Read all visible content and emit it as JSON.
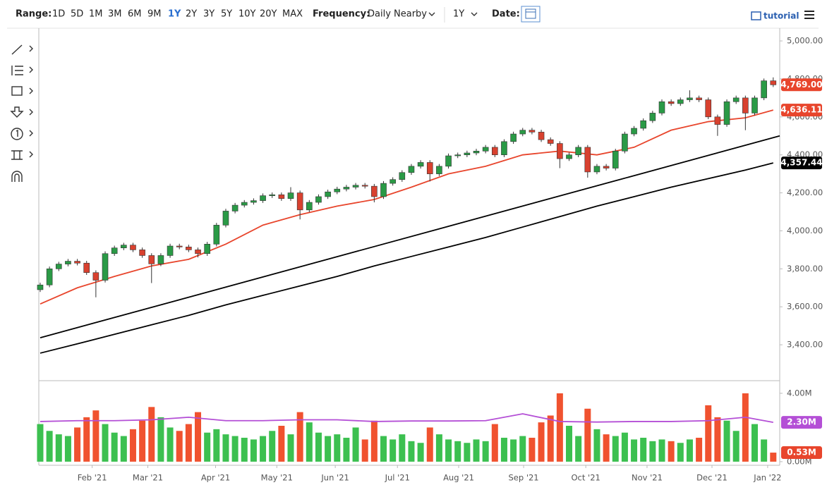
{
  "toolbar": {
    "range_label": "Range:",
    "ranges": [
      "1D",
      "5D",
      "1M",
      "3M",
      "6M",
      "9M",
      "1Y",
      "2Y",
      "3Y",
      "5Y",
      "10Y",
      "20Y",
      "MAX"
    ],
    "active_range": 6,
    "frequency_label": "Frequency:",
    "frequency": "Daily Nearby",
    "period": "1Y",
    "date_label": "Date:",
    "tutorial": "tutorial"
  },
  "chart_data": [
    {
      "type": "candlestick",
      "open": [
        3690,
        3715,
        3800,
        3825,
        3840,
        3830,
        3780,
        3740,
        3880,
        3910,
        3925,
        3900,
        3870,
        3826,
        3870,
        3920,
        3915,
        3900,
        3880,
        3930,
        4030,
        4104,
        4135,
        4150,
        4159,
        4185,
        4190,
        4170,
        4200,
        4110,
        4150,
        4180,
        4205,
        4220,
        4230,
        4240,
        4235,
        4180,
        4250,
        4270,
        4307,
        4340,
        4360,
        4300,
        4340,
        4395,
        4400,
        4410,
        4420,
        4440,
        4400,
        4470,
        4510,
        4530,
        4520,
        4480,
        4460,
        4380,
        4400,
        4440,
        4310,
        4340,
        4330,
        4420,
        4510,
        4540,
        4580,
        4620,
        4680,
        4670,
        4690,
        4700,
        4690,
        4600,
        4560,
        4680,
        4700,
        4620,
        4700,
        4790
      ],
      "high": [
        3727,
        3812,
        3837,
        3852,
        3852,
        3842,
        3792,
        3892,
        3922,
        3937,
        3937,
        3912,
        3882,
        3882,
        3932,
        3932,
        3927,
        3912,
        3942,
        4042,
        4116,
        4147,
        4162,
        4171,
        4197,
        4202,
        4202,
        4230,
        4212,
        4162,
        4192,
        4217,
        4232,
        4242,
        4252,
        4252,
        4247,
        4262,
        4282,
        4319,
        4352,
        4372,
        4372,
        4352,
        4407,
        4412,
        4422,
        4432,
        4452,
        4452,
        4482,
        4522,
        4542,
        4542,
        4532,
        4492,
        4472,
        4412,
        4452,
        4452,
        4352,
        4352,
        4432,
        4522,
        4552,
        4592,
        4632,
        4692,
        4692,
        4702,
        4740,
        4712,
        4702,
        4612,
        4692,
        4712,
        4712,
        4712,
        4802,
        4808
      ],
      "low": [
        3678,
        3703,
        3788,
        3813,
        3818,
        3768,
        3650,
        3728,
        3868,
        3898,
        3888,
        3858,
        3725,
        3814,
        3858,
        3903,
        3888,
        3860,
        3868,
        3918,
        4018,
        4092,
        4123,
        4138,
        4147,
        4173,
        4158,
        4158,
        4060,
        4098,
        4138,
        4168,
        4193,
        4208,
        4218,
        4223,
        4150,
        4168,
        4238,
        4258,
        4295,
        4328,
        4260,
        4288,
        4328,
        4383,
        4388,
        4398,
        4408,
        4388,
        4388,
        4458,
        4498,
        4508,
        4468,
        4448,
        4330,
        4368,
        4388,
        4280,
        4298,
        4318,
        4318,
        4408,
        4498,
        4528,
        4568,
        4608,
        4658,
        4658,
        4678,
        4678,
        4588,
        4500,
        4548,
        4668,
        4530,
        4608,
        4688,
        4757
      ],
      "close": [
        3715,
        3800,
        3825,
        3840,
        3830,
        3780,
        3740,
        3880,
        3910,
        3925,
        3900,
        3870,
        3826,
        3870,
        3920,
        3915,
        3900,
        3880,
        3930,
        4030,
        4104,
        4135,
        4150,
        4159,
        4185,
        4190,
        4170,
        4200,
        4110,
        4150,
        4180,
        4205,
        4220,
        4230,
        4240,
        4235,
        4180,
        4250,
        4270,
        4307,
        4340,
        4360,
        4300,
        4340,
        4395,
        4400,
        4410,
        4420,
        4440,
        4400,
        4470,
        4510,
        4530,
        4520,
        4480,
        4460,
        4380,
        4400,
        4440,
        4310,
        4340,
        4330,
        4420,
        4510,
        4540,
        4580,
        4620,
        4680,
        4670,
        4690,
        4700,
        4690,
        4600,
        4560,
        4680,
        4700,
        4620,
        4700,
        4790,
        4769
      ],
      "close_label": "4,769.00",
      "close_label_color": "#e8452c",
      "up_color": "#2a9a46",
      "down_color": "#d8412f",
      "series": [
        {
          "color": "#e8452c",
          "x": [
            0,
            4,
            8,
            12,
            16,
            20,
            24,
            28,
            32,
            36,
            40,
            44,
            48,
            52,
            56,
            60,
            64,
            68,
            72,
            76,
            79
          ],
          "values": [
            3615,
            3700,
            3760,
            3815,
            3850,
            3930,
            4030,
            4085,
            4130,
            4165,
            4230,
            4300,
            4340,
            4400,
            4420,
            4400,
            4440,
            4530,
            4575,
            4595,
            4636.11
          ],
          "label": "4,636.11"
        },
        {
          "color": "#000000",
          "x": [
            0,
            79.7
          ],
          "values": [
            3437,
            4500
          ]
        },
        {
          "color": "#000000",
          "x": [
            0,
            4,
            8,
            12,
            16,
            20,
            24,
            28,
            32,
            36,
            40,
            44,
            48,
            52,
            56,
            60,
            64,
            68,
            72,
            76,
            79
          ],
          "values": [
            3356,
            3405,
            3455,
            3505,
            3555,
            3610,
            3660,
            3710,
            3760,
            3815,
            3865,
            3915,
            3965,
            4020,
            4075,
            4130,
            4180,
            4230,
            4275,
            4320,
            4357.44
          ],
          "label": "4,357.44"
        }
      ],
      "xlim": [
        -0.15,
        79.7
      ],
      "xticks": [
        {
          "value": 5.6,
          "label": "Feb '21"
        },
        {
          "value": 11.6,
          "label": "Mar '21"
        },
        {
          "value": 18.9,
          "label": "Apr '21"
        },
        {
          "value": 25.5,
          "label": "May '21"
        },
        {
          "value": 31.8,
          "label": "Jun '21"
        },
        {
          "value": 38.5,
          "label": "Jul '21"
        },
        {
          "value": 45.1,
          "label": "Aug '21"
        },
        {
          "value": 52.1,
          "label": "Sep '21"
        },
        {
          "value": 58.8,
          "label": "Oct '21"
        },
        {
          "value": 65.4,
          "label": "Nov '21"
        },
        {
          "value": 72.4,
          "label": "Dec '21"
        },
        {
          "value": 78.4,
          "label": "Jan '22"
        }
      ],
      "ylim": [
        3211,
        5067
      ],
      "yticks": [
        {
          "value": 3400,
          "label": "3,400.00"
        },
        {
          "value": 3600,
          "label": "3,600.00"
        },
        {
          "value": 3800,
          "label": "3,800.00"
        },
        {
          "value": 4000,
          "label": "4,000.00"
        },
        {
          "value": 4200,
          "label": "4,200.00"
        },
        {
          "value": 4400,
          "label": "4,400.00"
        },
        {
          "value": 4600,
          "label": "4,600.00"
        },
        {
          "value": 4800,
          "label": "4,800.00"
        },
        {
          "value": 5000,
          "label": "5,000.00"
        }
      ]
    },
    {
      "type": "bar",
      "values": [
        2.2,
        1.8,
        1.6,
        1.5,
        2.0,
        2.6,
        3.0,
        2.2,
        1.7,
        1.5,
        1.9,
        2.4,
        3.2,
        2.6,
        2.0,
        1.8,
        2.2,
        2.9,
        1.7,
        1.9,
        1.6,
        1.5,
        1.4,
        1.3,
        1.5,
        1.8,
        2.1,
        1.6,
        2.9,
        2.3,
        1.7,
        1.5,
        1.6,
        1.4,
        2.0,
        1.3,
        2.4,
        1.5,
        1.3,
        1.6,
        1.2,
        1.1,
        2.0,
        1.6,
        1.3,
        1.2,
        1.1,
        1.3,
        1.2,
        2.2,
        1.4,
        1.3,
        1.5,
        1.4,
        2.3,
        2.7,
        4.0,
        2.1,
        1.5,
        3.1,
        1.9,
        1.6,
        1.5,
        1.7,
        1.3,
        1.4,
        1.2,
        1.3,
        1.2,
        1.1,
        1.3,
        1.4,
        3.3,
        2.6,
        2.4,
        1.8,
        4.0,
        2.2,
        1.3,
        0.53
      ],
      "last_label": "0.53M",
      "last_label_color": "#e8452c",
      "up_color": "#3cc050",
      "down_color": "#f0522f",
      "series": [
        {
          "color": "#b44fd6",
          "x": [
            0,
            4,
            8,
            12,
            16,
            20,
            24,
            28,
            32,
            36,
            40,
            44,
            48,
            52,
            56,
            60,
            64,
            68,
            72,
            76,
            79
          ],
          "values": [
            2.35,
            2.4,
            2.4,
            2.45,
            2.6,
            2.4,
            2.4,
            2.45,
            2.45,
            2.35,
            2.38,
            2.38,
            2.4,
            2.8,
            2.35,
            2.32,
            2.35,
            2.35,
            2.4,
            2.6,
            2.3
          ],
          "label": "2.30M"
        }
      ],
      "xlim": [
        -0.15,
        79.7
      ],
      "ylim": [
        -0.21,
        4.74
      ],
      "yticks": [
        {
          "value": 0,
          "label": "0.00M"
        },
        {
          "value": 4,
          "label": "4.00M"
        }
      ]
    }
  ]
}
